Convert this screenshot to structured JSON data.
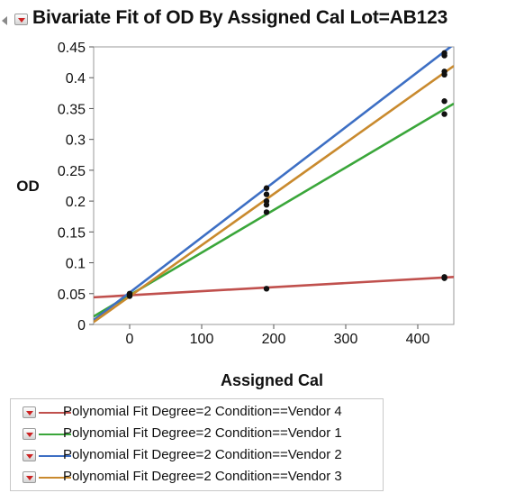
{
  "title": "Bivariate Fit of OD By Assigned Cal Lot=AB123",
  "chart_data": {
    "type": "scatter",
    "xlabel": "Assigned Cal",
    "ylabel": "OD",
    "xlim": [
      -50,
      450
    ],
    "ylim": [
      0,
      0.45
    ],
    "x_ticks": [
      "0",
      "100",
      "200",
      "300",
      "400"
    ],
    "y_ticks": [
      "0",
      "0.05",
      "0.1",
      "0.15",
      "0.2",
      "0.25",
      "0.3",
      "0.35",
      "0.4",
      "0.45"
    ],
    "legend_position": "bottom",
    "points": [
      {
        "x": 0,
        "y": 0.046
      },
      {
        "x": 0,
        "y": 0.05
      },
      {
        "x": 0,
        "y": 0.047
      },
      {
        "x": 0,
        "y": 0.049
      },
      {
        "x": 190,
        "y": 0.058
      },
      {
        "x": 190,
        "y": 0.182
      },
      {
        "x": 190,
        "y": 0.194
      },
      {
        "x": 190,
        "y": 0.2
      },
      {
        "x": 190,
        "y": 0.211
      },
      {
        "x": 190,
        "y": 0.221
      },
      {
        "x": 437,
        "y": 0.075
      },
      {
        "x": 437,
        "y": 0.077
      },
      {
        "x": 437,
        "y": 0.341
      },
      {
        "x": 437,
        "y": 0.362
      },
      {
        "x": 437,
        "y": 0.405
      },
      {
        "x": 437,
        "y": 0.41
      },
      {
        "x": 437,
        "y": 0.436
      },
      {
        "x": 437,
        "y": 0.44
      }
    ],
    "series": [
      {
        "name": "Polynomial Fit Degree=2 Condition==Vendor 4",
        "color": "#c0504d",
        "x": [
          -50,
          450
        ],
        "y": [
          0.044,
          0.077
        ]
      },
      {
        "name": "Polynomial Fit Degree=2 Condition==Vendor 1",
        "color": "#3aa63a",
        "x": [
          -50,
          450
        ],
        "y": [
          0.013,
          0.358
        ]
      },
      {
        "name": "Polynomial Fit Degree=2 Condition==Vendor 2",
        "color": "#3d6fc4",
        "x": [
          -50,
          450
        ],
        "y": [
          0.007,
          0.454
        ]
      },
      {
        "name": "Polynomial Fit Degree=2 Condition==Vendor 3",
        "color": "#c98a2e",
        "x": [
          -50,
          450
        ],
        "y": [
          0.004,
          0.419
        ]
      }
    ]
  }
}
